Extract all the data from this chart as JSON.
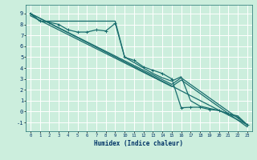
{
  "background_color": "#cceedd",
  "grid_color": "#ffffff",
  "line_color": "#1a6e6e",
  "xlabel": "Humidex (Indice chaleur)",
  "xlim": [
    -0.5,
    23.5
  ],
  "ylim": [
    -1.8,
    9.8
  ],
  "xticks": [
    0,
    1,
    2,
    3,
    4,
    5,
    6,
    7,
    8,
    9,
    10,
    11,
    12,
    13,
    14,
    15,
    16,
    17,
    18,
    19,
    20,
    21,
    22,
    23
  ],
  "yticks": [
    -1,
    0,
    1,
    2,
    3,
    4,
    5,
    6,
    7,
    8,
    9
  ],
  "line1_x": [
    0,
    1,
    2,
    3,
    4,
    5,
    6,
    7,
    8,
    9,
    10,
    11,
    12,
    13,
    14,
    15,
    16,
    17,
    18,
    19,
    20,
    21,
    22,
    23
  ],
  "line1_y": [
    9.0,
    8.3,
    8.2,
    8.0,
    7.5,
    7.3,
    7.3,
    7.5,
    7.4,
    8.1,
    5.0,
    4.7,
    4.1,
    3.8,
    3.5,
    3.0,
    0.35,
    0.4,
    0.4,
    0.2,
    0.1,
    -0.2,
    -0.5,
    -1.2
  ],
  "line2_x": [
    0,
    1,
    2,
    3,
    9,
    10,
    11,
    12,
    13,
    14,
    15,
    16,
    17,
    18,
    19,
    20,
    21,
    22,
    23
  ],
  "line2_y": [
    9.0,
    8.3,
    8.3,
    8.3,
    8.3,
    5.0,
    4.5,
    4.0,
    3.5,
    3.1,
    2.8,
    3.2,
    1.0,
    0.5,
    0.3,
    0.1,
    -0.2,
    -0.4,
    -1.2
  ],
  "line3_x": [
    0,
    23
  ],
  "line3_y": [
    9.0,
    -1.2
  ],
  "line4_x": [
    0,
    15,
    16,
    23
  ],
  "line4_y": [
    9.0,
    2.5,
    3.1,
    -1.2
  ],
  "line5_x": [
    0,
    15,
    16,
    23
  ],
  "line5_y": [
    8.8,
    2.3,
    2.9,
    -1.4
  ]
}
